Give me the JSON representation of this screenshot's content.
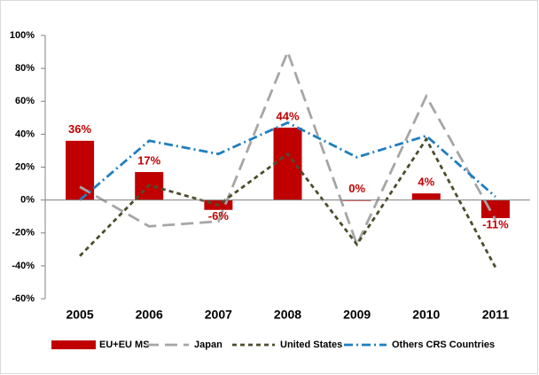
{
  "chart_data": {
    "type": "bar",
    "categories": [
      "2005",
      "2006",
      "2007",
      "2008",
      "2009",
      "2010",
      "2011"
    ],
    "series": [
      {
        "name": "EU+EU MS",
        "type": "bar",
        "color": "#c00000",
        "values": [
          36,
          17,
          -6,
          44,
          0,
          4,
          -11
        ],
        "value_labels": [
          "36%",
          "17%",
          "-6%",
          "44%",
          "0%",
          "4%",
          "-11%"
        ]
      },
      {
        "name": "Japan",
        "type": "line",
        "color": "#a6a6a6",
        "dash": "14,7",
        "values": [
          8,
          -16,
          -13,
          90,
          -27,
          63,
          -12
        ]
      },
      {
        "name": "United States",
        "type": "line",
        "color": "#4d4d2e",
        "dash": "5,4",
        "values": [
          -34,
          9,
          -3,
          28,
          -27,
          37,
          -41
        ]
      },
      {
        "name": "Others CRS Countries",
        "type": "line",
        "color": "#1f7ec0",
        "dash": "10,4,2,4",
        "values": [
          0,
          36,
          28,
          47,
          26,
          39,
          2
        ]
      }
    ],
    "ylim": [
      -60,
      100
    ],
    "yticks": [
      {
        "value": -60,
        "label": "-60%"
      },
      {
        "value": -40,
        "label": "-40%"
      },
      {
        "value": -20,
        "label": "-20%"
      },
      {
        "value": 0,
        "label": "0%"
      },
      {
        "value": 20,
        "label": "20%"
      },
      {
        "value": 40,
        "label": "40%"
      },
      {
        "value": 60,
        "label": "60%"
      },
      {
        "value": 80,
        "label": "80%"
      },
      {
        "value": 100,
        "label": "100%"
      }
    ],
    "grid": false,
    "legend": "bottom"
  }
}
